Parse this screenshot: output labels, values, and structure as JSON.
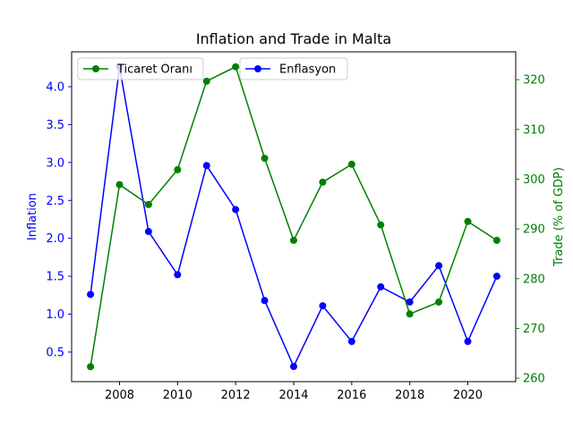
{
  "chart_data": {
    "type": "line",
    "title": "Inflation and Trade in Malta",
    "x": [
      2007,
      2008,
      2009,
      2010,
      2011,
      2012,
      2013,
      2014,
      2015,
      2016,
      2017,
      2018,
      2019,
      2020,
      2021
    ],
    "x_ticks": [
      2008,
      2010,
      2012,
      2014,
      2016,
      2018,
      2020
    ],
    "xlim": [
      2006.35,
      2021.65
    ],
    "series": [
      {
        "name": "Enflasyon",
        "axis": "left",
        "color": "#0000ff",
        "values": [
          1.26,
          4.26,
          2.09,
          1.52,
          2.96,
          2.38,
          1.18,
          0.31,
          1.11,
          0.64,
          1.36,
          1.16,
          1.64,
          0.64,
          1.5
        ]
      },
      {
        "name": "Ticaret Oranı",
        "axis": "right",
        "color": "#008000",
        "values": [
          262.3,
          298.9,
          294.9,
          301.9,
          319.7,
          322.6,
          304.2,
          287.7,
          299.4,
          303.0,
          290.8,
          272.9,
          275.3,
          291.5,
          287.7
        ]
      }
    ],
    "y_left": {
      "label": "Inflation",
      "color": "#0000ff",
      "ylim": [
        0.11,
        4.46
      ],
      "ticks": [
        0.5,
        1.0,
        1.5,
        2.0,
        2.5,
        3.0,
        3.5,
        4.0
      ],
      "tick_labels": [
        "0.5",
        "1.0",
        "1.5",
        "2.0",
        "2.5",
        "3.0",
        "3.5",
        "4.0"
      ]
    },
    "y_right": {
      "label": "Trade (% of GDP)",
      "color": "#008000",
      "ylim": [
        259.3,
        325.6
      ],
      "ticks": [
        260,
        270,
        280,
        290,
        300,
        310,
        320
      ],
      "tick_labels": [
        "260",
        "270",
        "280",
        "290",
        "300",
        "310",
        "320"
      ]
    },
    "legends": [
      {
        "label": "Ticaret Oranı",
        "color": "#008000",
        "placement": "upper-left"
      },
      {
        "label": "Enflasyon",
        "color": "#0000ff",
        "placement": "upper-center"
      }
    ],
    "grid": false
  }
}
